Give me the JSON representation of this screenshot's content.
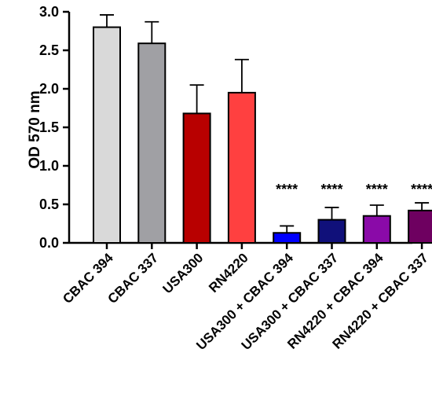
{
  "chart_data": {
    "type": "bar",
    "title": "",
    "xlabel": "",
    "ylabel": "OD 570 nm",
    "ylim": [
      0,
      3.0
    ],
    "yticks": [
      "0.0",
      "0.5",
      "1.0",
      "1.5",
      "2.0",
      "2.5",
      "3.0"
    ],
    "grid": false,
    "legend": "none",
    "categories": [
      "CBAC 394",
      "CBAC 337",
      "USA300",
      "RN4220",
      "USA300 + CBAC 394",
      "USA300 + CBAC 337",
      "RN4220 + CBAC 394",
      "RN4220 + CBAC 337"
    ],
    "values": [
      2.8,
      2.59,
      1.68,
      1.95,
      0.13,
      0.3,
      0.35,
      0.42
    ],
    "errors": [
      0.16,
      0.28,
      0.37,
      0.43,
      0.09,
      0.16,
      0.14,
      0.1
    ],
    "colors": [
      "#d9d9d9",
      "#a0a0a4",
      "#b80000",
      "#ff4040",
      "#0000ff",
      "#10107a",
      "#8a0aa8",
      "#6e0060"
    ],
    "annotations": [
      "",
      "",
      "",
      "",
      "****",
      "****",
      "****",
      "****"
    ]
  }
}
